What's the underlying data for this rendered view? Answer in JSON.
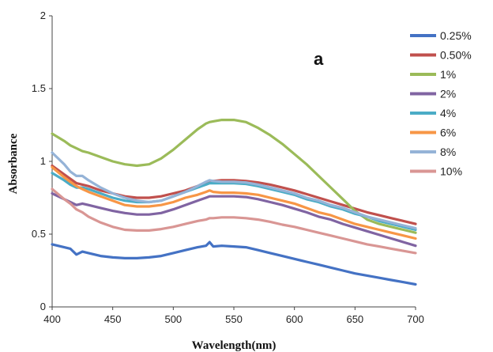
{
  "chart_data": {
    "type": "line",
    "title": "",
    "panel_label": "a",
    "xlabel": "Wavelength(nm)",
    "ylabel": "Absorbance",
    "xlim": [
      400,
      700
    ],
    "ylim": [
      0,
      2
    ],
    "xticks": [
      400,
      450,
      500,
      550,
      600,
      650,
      700
    ],
    "yticks": [
      0,
      0.5,
      1,
      1.5,
      2
    ],
    "ytick_labels": [
      "0",
      "0.5",
      "1",
      "1.5",
      "2"
    ],
    "grid": false,
    "legend_position": "right",
    "x": [
      400,
      410,
      415,
      420,
      425,
      430,
      440,
      450,
      460,
      470,
      480,
      490,
      500,
      510,
      520,
      527,
      530,
      533,
      540,
      550,
      560,
      570,
      580,
      590,
      600,
      610,
      620,
      630,
      640,
      650,
      660,
      670,
      680,
      690,
      700
    ],
    "series": [
      {
        "name": "0.25%",
        "color": "#4472C4",
        "values": [
          0.43,
          0.41,
          0.4,
          0.36,
          0.38,
          0.37,
          0.35,
          0.34,
          0.335,
          0.335,
          0.34,
          0.35,
          0.37,
          0.39,
          0.41,
          0.42,
          0.445,
          0.415,
          0.42,
          0.415,
          0.41,
          0.39,
          0.37,
          0.35,
          0.33,
          0.31,
          0.29,
          0.27,
          0.25,
          0.23,
          0.215,
          0.2,
          0.185,
          0.17,
          0.155
        ]
      },
      {
        "name": "0.50%",
        "color": "#C0504D",
        "values": [
          0.97,
          0.91,
          0.88,
          0.85,
          0.84,
          0.83,
          0.8,
          0.78,
          0.76,
          0.75,
          0.75,
          0.76,
          0.78,
          0.8,
          0.83,
          0.855,
          0.865,
          0.865,
          0.87,
          0.87,
          0.865,
          0.855,
          0.84,
          0.82,
          0.8,
          0.775,
          0.75,
          0.725,
          0.7,
          0.675,
          0.65,
          0.63,
          0.61,
          0.59,
          0.57
        ]
      },
      {
        "name": "1%",
        "color": "#9BBB59",
        "values": [
          1.19,
          1.14,
          1.11,
          1.09,
          1.07,
          1.06,
          1.03,
          1.0,
          0.98,
          0.97,
          0.98,
          1.02,
          1.08,
          1.15,
          1.22,
          1.26,
          1.27,
          1.275,
          1.285,
          1.285,
          1.27,
          1.23,
          1.18,
          1.12,
          1.05,
          0.98,
          0.9,
          0.82,
          0.74,
          0.66,
          0.6,
          0.57,
          0.55,
          0.53,
          0.51
        ]
      },
      {
        "name": "2%",
        "color": "#8064A2",
        "values": [
          0.78,
          0.74,
          0.72,
          0.7,
          0.71,
          0.7,
          0.68,
          0.66,
          0.645,
          0.635,
          0.635,
          0.645,
          0.67,
          0.7,
          0.73,
          0.75,
          0.76,
          0.76,
          0.76,
          0.76,
          0.755,
          0.74,
          0.72,
          0.7,
          0.675,
          0.65,
          0.62,
          0.6,
          0.57,
          0.545,
          0.52,
          0.495,
          0.47,
          0.445,
          0.42
        ]
      },
      {
        "name": "4%",
        "color": "#4BACC6",
        "values": [
          0.92,
          0.87,
          0.84,
          0.82,
          0.82,
          0.81,
          0.78,
          0.75,
          0.73,
          0.72,
          0.72,
          0.73,
          0.76,
          0.79,
          0.82,
          0.84,
          0.85,
          0.85,
          0.85,
          0.85,
          0.845,
          0.83,
          0.81,
          0.79,
          0.77,
          0.74,
          0.72,
          0.69,
          0.67,
          0.64,
          0.62,
          0.59,
          0.57,
          0.55,
          0.53
        ]
      },
      {
        "name": "6%",
        "color": "#F79646",
        "values": [
          0.96,
          0.89,
          0.86,
          0.83,
          0.81,
          0.79,
          0.76,
          0.73,
          0.7,
          0.69,
          0.69,
          0.7,
          0.72,
          0.75,
          0.77,
          0.79,
          0.8,
          0.79,
          0.785,
          0.785,
          0.78,
          0.77,
          0.75,
          0.73,
          0.71,
          0.68,
          0.65,
          0.63,
          0.6,
          0.57,
          0.55,
          0.53,
          0.51,
          0.49,
          0.47
        ]
      },
      {
        "name": "8%",
        "color": "#95B3D7",
        "values": [
          1.06,
          0.98,
          0.93,
          0.9,
          0.9,
          0.87,
          0.82,
          0.78,
          0.75,
          0.73,
          0.72,
          0.73,
          0.76,
          0.79,
          0.83,
          0.86,
          0.87,
          0.865,
          0.86,
          0.86,
          0.855,
          0.84,
          0.82,
          0.8,
          0.78,
          0.75,
          0.73,
          0.7,
          0.68,
          0.65,
          0.62,
          0.6,
          0.58,
          0.56,
          0.54
        ]
      },
      {
        "name": "10%",
        "color": "#D99694",
        "values": [
          0.81,
          0.74,
          0.71,
          0.67,
          0.65,
          0.62,
          0.58,
          0.55,
          0.53,
          0.525,
          0.525,
          0.535,
          0.55,
          0.57,
          0.59,
          0.6,
          0.61,
          0.61,
          0.615,
          0.615,
          0.61,
          0.6,
          0.585,
          0.565,
          0.55,
          0.53,
          0.51,
          0.49,
          0.47,
          0.45,
          0.43,
          0.415,
          0.4,
          0.385,
          0.37
        ]
      }
    ]
  }
}
